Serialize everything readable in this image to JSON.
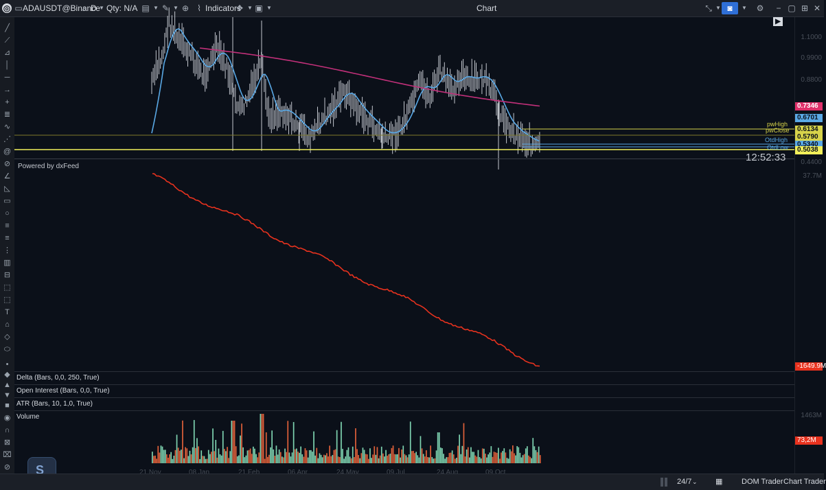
{
  "toolbar": {
    "symbol": "ADAUSDT@Binance",
    "interval": "D",
    "qty": "Qty: N/A",
    "indicators_label": "Indicators",
    "window_title": "Chart"
  },
  "chart": {
    "watermark": "Powered by dxFeed",
    "clock": "12:52:33",
    "price_axis_ticks": [
      "1.1000",
      "0.9900",
      "0.8800",
      "0.4400"
    ],
    "price_badges": [
      {
        "value": "0.7346",
        "color": "#e0306a",
        "text_color": "#ffffff"
      },
      {
        "value": "0.6701",
        "color": "#5aa9e6",
        "text_color": "#0b1019"
      },
      {
        "value": "0.6134",
        "color": "#d7d34a",
        "text_color": "#0b1019"
      },
      {
        "value": "0.5790",
        "color": "#d7d34a",
        "text_color": "#0b1019"
      },
      {
        "value": "0.5340",
        "color": "#5aa9e6",
        "text_color": "#0b1019"
      },
      {
        "value": "0.5038",
        "color": "#f2ef5a",
        "text_color": "#0b1019"
      }
    ],
    "level_labels": [
      {
        "text": "pwHigh",
        "color": "#d7d34a"
      },
      {
        "text": "pwClose",
        "color": "#d7d34a"
      },
      {
        "text": "OtdHigh",
        "color": "#5aa9e6"
      },
      {
        "text": "OtdLow",
        "color": "#5aa9e6"
      }
    ]
  },
  "cvd_pane": {
    "top_tick": "37.7M",
    "last_value": "-1649.9M",
    "line_color": "#e8321e"
  },
  "panes": [
    {
      "label": "Delta (Bars, 0,0, 250, True)"
    },
    {
      "label": "Open Interest (Bars, 0,0, True)"
    },
    {
      "label": "ATR (Bars, 10, 1,0, True)"
    }
  ],
  "volume_pane": {
    "label": "Volume",
    "top_tick": "1463M",
    "last_value": "73,2M"
  },
  "date_labels": [
    "21 Nov",
    "08 Jan",
    "21 Feb",
    "06 Apr",
    "24 May",
    "09 Jul",
    "24 Aug",
    "09 Oct"
  ],
  "bottombar": {
    "session": "24/7",
    "dom_trader": "DOM Trader",
    "chart_trader": "Chart Trader"
  },
  "colors": {
    "background": "#0b1019",
    "candle": "#c4c8cf",
    "ma_blue": "#5aa9e6",
    "ma_pink": "#c2307a",
    "level_yellow": "#d7d34a",
    "volume_up": "#7ed3b0",
    "volume_down": "#e0603a"
  }
}
